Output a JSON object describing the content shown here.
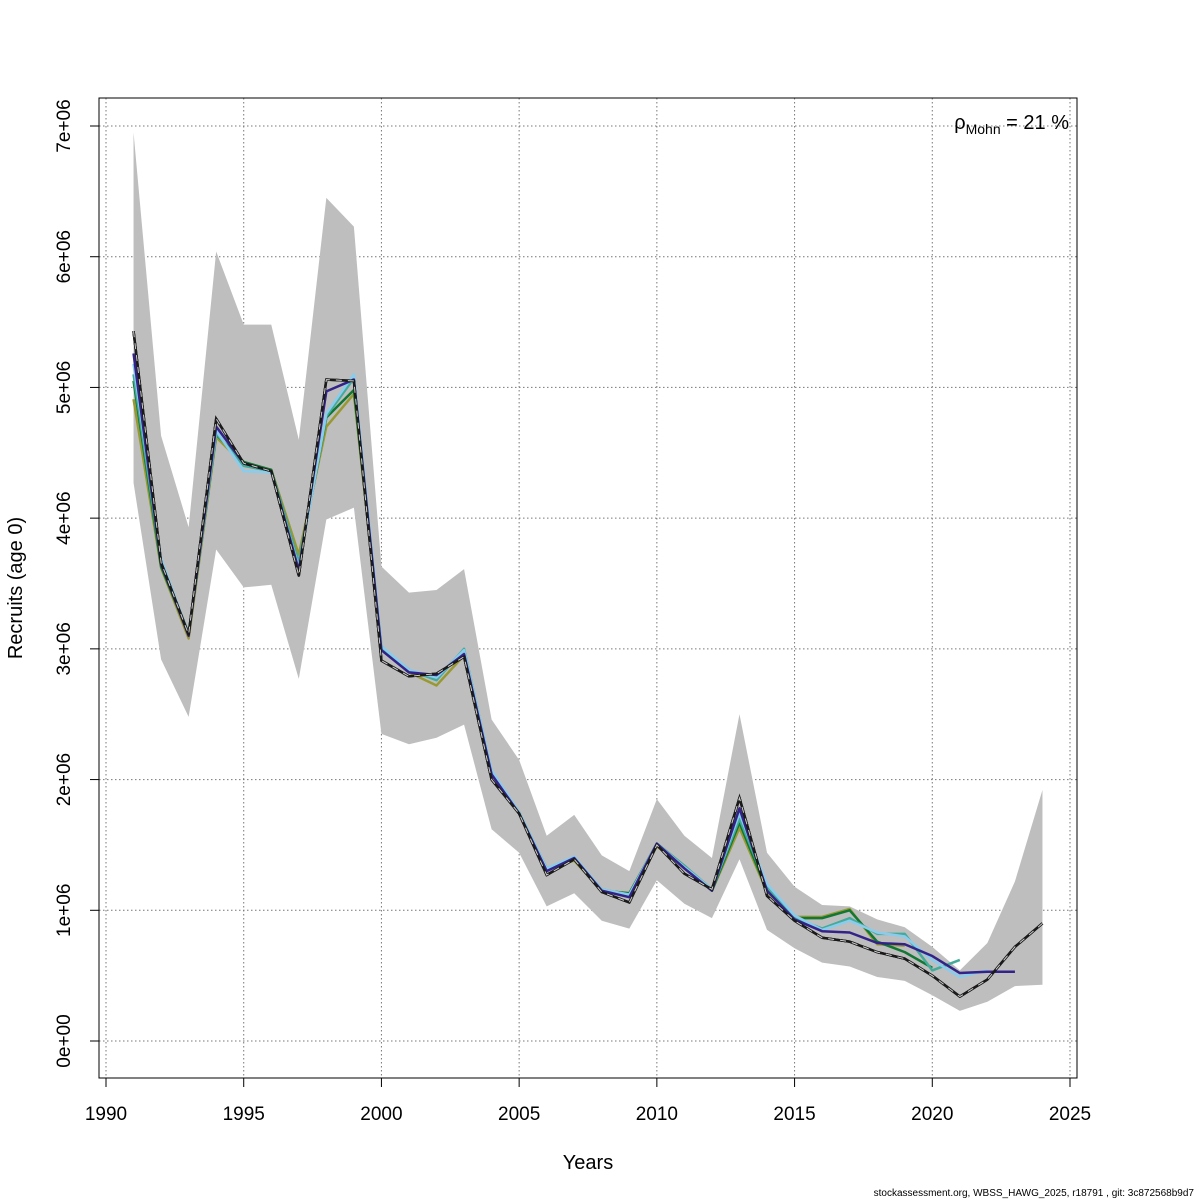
{
  "chart_data": {
    "type": "line",
    "title": "",
    "xlabel": "Years",
    "ylabel": "Recruits (age 0)",
    "xlim": [
      1990,
      2025
    ],
    "ylim": [
      0,
      7000000
    ],
    "x_ticks": [
      1990,
      1995,
      2000,
      2005,
      2010,
      2015,
      2020,
      2025
    ],
    "x_tick_labels": [
      "1990",
      "1995",
      "2000",
      "2005",
      "2010",
      "2015",
      "2020",
      "2025"
    ],
    "y_ticks": [
      0,
      1000000,
      2000000,
      3000000,
      4000000,
      5000000,
      6000000,
      7000000
    ],
    "y_tick_labels": [
      "0e+00",
      "1e+06",
      "2e+06",
      "3e+06",
      "4e+06",
      "5e+06",
      "6e+06",
      "7e+06"
    ],
    "grid": true,
    "annotation": {
      "symbol": "ρ",
      "subscript": "Mohn",
      "text": " = 21 %"
    },
    "footer": "stockassessment.org, WBSS_HAWG_2025, r18791 , git: 3c872568b9d7",
    "confidence_band": {
      "x": [
        1991,
        1992,
        1993,
        1994,
        1995,
        1996,
        1997,
        1998,
        1999,
        2000,
        2001,
        2002,
        2003,
        2004,
        2005,
        2006,
        2007,
        2008,
        2009,
        2010,
        2011,
        2012,
        2013,
        2014,
        2015,
        2016,
        2017,
        2018,
        2019,
        2020,
        2021,
        2022,
        2023,
        2024
      ],
      "upper": [
        6950000,
        4630000,
        3930000,
        6040000,
        5480000,
        5480000,
        4600000,
        6450000,
        6230000,
        3630000,
        3430000,
        3450000,
        3610000,
        2460000,
        2150000,
        1570000,
        1730000,
        1420000,
        1300000,
        1850000,
        1570000,
        1400000,
        2500000,
        1440000,
        1180000,
        1040000,
        1030000,
        930000,
        870000,
        720000,
        540000,
        750000,
        1220000,
        1920000
      ],
      "lower": [
        4270000,
        2920000,
        2480000,
        3760000,
        3470000,
        3490000,
        2770000,
        3990000,
        4080000,
        2350000,
        2270000,
        2320000,
        2420000,
        1620000,
        1440000,
        1030000,
        1130000,
        920000,
        860000,
        1230000,
        1050000,
        940000,
        1390000,
        850000,
        710000,
        600000,
        570000,
        490000,
        460000,
        350000,
        230000,
        300000,
        420000,
        430000
      ],
      "color": "#bebebe"
    },
    "series": [
      {
        "style": "dashed",
        "color": "#1a1a1a",
        "x": [
          1991,
          1992,
          1993,
          1994,
          1995,
          1996,
          1997,
          1998,
          1999,
          2000,
          2001,
          2002,
          2003,
          2004,
          2005,
          2006,
          2007,
          2008,
          2009,
          2010,
          2011,
          2012,
          2013,
          2014,
          2015,
          2016,
          2017,
          2018,
          2019,
          2020,
          2021,
          2022,
          2023,
          2024
        ],
        "values": [
          5430000,
          3660000,
          3110000,
          4760000,
          4420000,
          4360000,
          3560000,
          5060000,
          5050000,
          2910000,
          2790000,
          2810000,
          2940000,
          2000000,
          1740000,
          1270000,
          1390000,
          1140000,
          1060000,
          1500000,
          1280000,
          1160000,
          1860000,
          1110000,
          920000,
          790000,
          760000,
          680000,
          630000,
          500000,
          340000,
          470000,
          720000,
          900000
        ]
      },
      {
        "style": "solid",
        "color": "#1a1a1a",
        "x": [
          1991,
          1992,
          1993,
          1994,
          1995,
          1996,
          1997,
          1998,
          1999,
          2000,
          2001,
          2002,
          2003,
          2004,
          2005,
          2006,
          2007,
          2008,
          2009,
          2010,
          2011,
          2012,
          2013,
          2014,
          2015,
          2016,
          2017,
          2018,
          2019,
          2020,
          2021,
          2022,
          2023,
          2024
        ],
        "values": [
          5430000,
          3660000,
          3110000,
          4760000,
          4420000,
          4360000,
          3560000,
          5060000,
          5050000,
          2910000,
          2790000,
          2810000,
          2940000,
          2000000,
          1740000,
          1270000,
          1390000,
          1140000,
          1060000,
          1500000,
          1280000,
          1160000,
          1860000,
          1110000,
          920000,
          790000,
          760000,
          680000,
          630000,
          500000,
          340000,
          470000,
          720000,
          900000
        ]
      },
      {
        "style": "solid",
        "color": "#332288",
        "x": [
          1991,
          1992,
          1993,
          1994,
          1995,
          1996,
          1997,
          1998,
          1999,
          2000,
          2001,
          2002,
          2003,
          2004,
          2005,
          2006,
          2007,
          2008,
          2009,
          2010,
          2011,
          2012,
          2013,
          2014,
          2015,
          2016,
          2017,
          2018,
          2019,
          2020,
          2021,
          2022,
          2023
        ],
        "values": [
          5260000,
          3650000,
          3100000,
          4700000,
          4420000,
          4360000,
          3600000,
          4970000,
          5060000,
          2990000,
          2820000,
          2800000,
          2960000,
          2040000,
          1740000,
          1300000,
          1400000,
          1150000,
          1100000,
          1510000,
          1320000,
          1150000,
          1780000,
          1150000,
          930000,
          840000,
          830000,
          750000,
          740000,
          650000,
          520000,
          530000,
          530000
        ]
      },
      {
        "style": "solid",
        "color": "#88ccee",
        "x": [
          1991,
          1992,
          1993,
          1994,
          1995,
          1996,
          1997,
          1998,
          1999,
          2000,
          2001,
          2002,
          2003,
          2004,
          2005,
          2006,
          2007,
          2008,
          2009,
          2010,
          2011,
          2012,
          2013,
          2014,
          2015,
          2016,
          2017,
          2018,
          2019,
          2020,
          2021,
          2022
        ],
        "values": [
          5180000,
          3690000,
          3110000,
          4670000,
          4360000,
          4350000,
          3620000,
          4800000,
          5100000,
          3020000,
          2840000,
          2780000,
          2990000,
          2070000,
          1750000,
          1320000,
          1410000,
          1160000,
          1120000,
          1510000,
          1330000,
          1160000,
          1740000,
          1200000,
          960000,
          850000,
          920000,
          830000,
          800000,
          620000,
          490000,
          540000
        ]
      },
      {
        "style": "solid",
        "color": "#44aa99",
        "x": [
          1991,
          1992,
          1993,
          1994,
          1995,
          1996,
          1997,
          1998,
          1999,
          2000,
          2001,
          2002,
          2003,
          2004,
          2005,
          2006,
          2007,
          2008,
          2009,
          2010,
          2011,
          2012,
          2013,
          2014,
          2015,
          2016,
          2017,
          2018,
          2019,
          2020,
          2021
        ],
        "values": [
          5100000,
          3660000,
          3120000,
          4650000,
          4400000,
          4360000,
          3660000,
          4780000,
          5070000,
          3010000,
          2840000,
          2760000,
          3000000,
          2060000,
          1750000,
          1320000,
          1400000,
          1160000,
          1120000,
          1510000,
          1340000,
          1160000,
          1700000,
          1180000,
          940000,
          860000,
          940000,
          820000,
          820000,
          540000,
          620000
        ]
      },
      {
        "style": "solid",
        "color": "#117733",
        "x": [
          1991,
          1992,
          1993,
          1994,
          1995,
          1996,
          1997,
          1998,
          1999,
          2000,
          2001,
          2002,
          2003,
          2004,
          2005,
          2006,
          2007,
          2008,
          2009,
          2010,
          2011,
          2012,
          2013,
          2014,
          2015,
          2016,
          2017,
          2018,
          2019,
          2020
        ],
        "values": [
          5050000,
          3630000,
          3110000,
          4640000,
          4430000,
          4370000,
          3650000,
          4770000,
          4980000,
          3000000,
          2830000,
          2780000,
          2990000,
          2060000,
          1740000,
          1320000,
          1400000,
          1150000,
          1130000,
          1510000,
          1340000,
          1150000,
          1670000,
          1150000,
          940000,
          940000,
          1000000,
          760000,
          680000,
          560000
        ]
      },
      {
        "style": "solid",
        "color": "#999933",
        "x": [
          1991,
          1992,
          1993,
          1994,
          1995,
          1996,
          1997,
          1998,
          1999,
          2000,
          2001,
          2002,
          2003,
          2004,
          2005,
          2006,
          2007,
          2008,
          2009,
          2010,
          2011,
          2012,
          2013,
          2014,
          2015,
          2016,
          2017,
          2018,
          2019
        ],
        "values": [
          4910000,
          3620000,
          3080000,
          4620000,
          4410000,
          4370000,
          3720000,
          4700000,
          4950000,
          3020000,
          2820000,
          2720000,
          2950000,
          2050000,
          1740000,
          1320000,
          1380000,
          1150000,
          1130000,
          1490000,
          1330000,
          1150000,
          1630000,
          1140000,
          950000,
          950000,
          1010000,
          740000,
          730000
        ]
      }
    ]
  }
}
